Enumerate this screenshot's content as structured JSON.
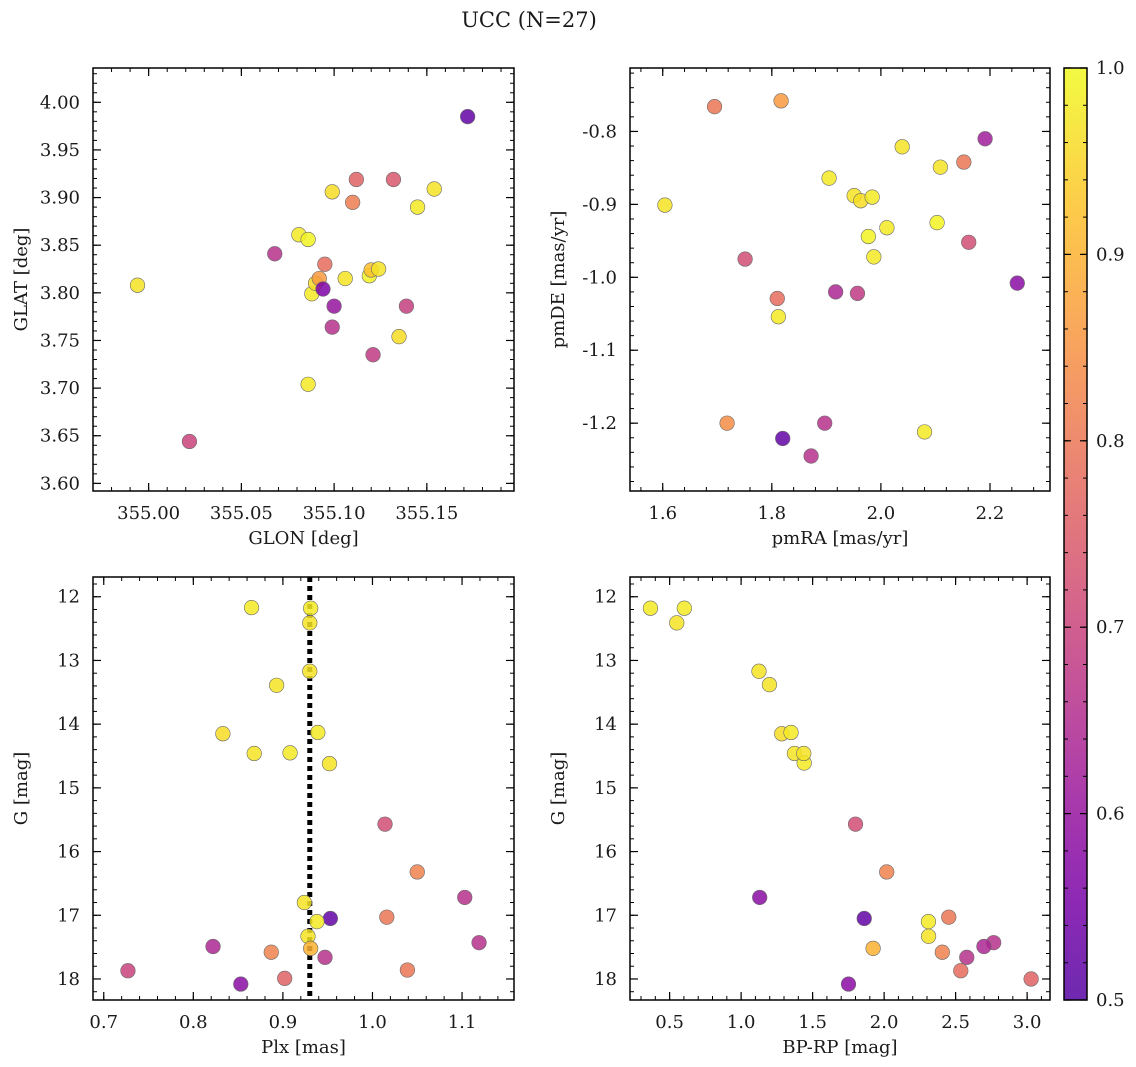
{
  "suptitle": "UCC (N=27)",
  "colorbar": {
    "vmin": 0.5,
    "vmax": 1.0,
    "ticks": [
      0.5,
      0.6,
      0.7,
      0.8,
      0.9,
      1.0
    ]
  },
  "chart_data": [
    {
      "type": "scatter",
      "xlabel": "GLON [deg]",
      "ylabel": "GLAT [deg]",
      "xlim": [
        354.97,
        355.197
      ],
      "ylim": [
        3.592,
        4.036
      ],
      "y_inverted": false,
      "xticks": [
        355.0,
        355.05,
        355.1,
        355.15
      ],
      "xtick_decimals": 2,
      "yticks": [
        3.6,
        3.65,
        3.7,
        3.75,
        3.8,
        3.85,
        3.9,
        3.95,
        4.0
      ],
      "ytick_decimals": 2,
      "x": [
        354.994,
        355.022,
        355.068,
        355.081,
        355.086,
        355.086,
        355.088,
        355.09,
        355.092,
        355.094,
        355.095,
        355.099,
        355.099,
        355.1,
        355.106,
        355.11,
        355.112,
        355.119,
        355.12,
        355.121,
        355.124,
        355.132,
        355.135,
        355.139,
        355.145,
        355.154,
        355.172
      ],
      "y": [
        3.808,
        3.644,
        3.841,
        3.861,
        3.704,
        3.856,
        3.799,
        3.81,
        3.815,
        3.804,
        3.83,
        3.764,
        3.906,
        3.786,
        3.815,
        3.895,
        3.919,
        3.818,
        3.824,
        3.735,
        3.825,
        3.919,
        3.754,
        3.786,
        3.89,
        3.909,
        3.985
      ],
      "prob": [
        0.97,
        0.7,
        0.66,
        0.98,
        0.98,
        0.99,
        0.98,
        0.96,
        0.86,
        0.56,
        0.78,
        0.66,
        0.96,
        0.6,
        0.97,
        0.81,
        0.76,
        0.99,
        0.92,
        0.68,
        0.97,
        0.74,
        0.96,
        0.69,
        0.98,
        0.97,
        0.52
      ]
    },
    {
      "type": "scatter",
      "xlabel": "pmRA [mas/yr]",
      "ylabel": "pmDE [mas/yr]",
      "xlim": [
        1.54,
        2.31
      ],
      "ylim": [
        -1.293,
        -0.713
      ],
      "y_inverted": false,
      "xticks": [
        1.6,
        1.8,
        2.0,
        2.2
      ],
      "xtick_decimals": 1,
      "yticks": [
        -1.2,
        -1.1,
        -1.0,
        -0.9,
        -0.8
      ],
      "ytick_decimals": 1,
      "x": [
        1.604,
        1.695,
        1.718,
        1.751,
        1.81,
        1.812,
        1.817,
        1.82,
        1.872,
        1.897,
        1.905,
        1.917,
        1.951,
        1.957,
        1.963,
        1.977,
        1.984,
        1.987,
        2.011,
        2.039,
        2.08,
        2.103,
        2.109,
        2.152,
        2.161,
        2.191,
        2.25
      ],
      "y": [
        -0.901,
        -0.766,
        -1.2,
        -0.975,
        -1.029,
        -1.054,
        -0.758,
        -1.221,
        -1.245,
        -1.2,
        -0.864,
        -1.02,
        -0.888,
        -1.022,
        -0.895,
        -0.944,
        -0.89,
        -0.972,
        -0.932,
        -0.821,
        -1.212,
        -0.925,
        -0.849,
        -0.842,
        -0.952,
        -0.81,
        -1.008
      ],
      "prob": [
        0.97,
        0.8,
        0.84,
        0.72,
        0.78,
        0.98,
        0.86,
        0.52,
        0.66,
        0.66,
        0.98,
        0.64,
        0.97,
        0.68,
        0.96,
        0.99,
        0.98,
        0.98,
        0.98,
        0.97,
        0.98,
        0.99,
        0.97,
        0.8,
        0.72,
        0.62,
        0.58
      ]
    },
    {
      "type": "scatter",
      "xlabel": "Plx [mas]",
      "ylabel": "G [mag]",
      "xlim": [
        0.688,
        1.158
      ],
      "ylim": [
        18.33,
        11.69
      ],
      "y_inverted": true,
      "xticks": [
        0.7,
        0.8,
        0.9,
        1.0,
        1.1
      ],
      "xtick_decimals": 1,
      "yticks": [
        12,
        13,
        14,
        15,
        16,
        17,
        18
      ],
      "ytick_decimals": 0,
      "vline": {
        "x": 0.93,
        "style": "dotted"
      },
      "x": [
        0.865,
        0.931,
        0.93,
        0.93,
        0.893,
        0.833,
        0.939,
        0.868,
        0.908,
        0.952,
        1.014,
        1.05,
        1.103,
        0.924,
        0.953,
        1.016,
        0.938,
        0.928,
        1.119,
        0.822,
        0.931,
        0.887,
        0.727,
        1.039,
        0.902,
        0.947,
        0.853
      ],
      "y": [
        12.17,
        12.18,
        12.41,
        13.17,
        13.39,
        14.15,
        14.13,
        14.46,
        14.45,
        14.62,
        15.57,
        16.32,
        16.72,
        16.8,
        17.05,
        17.03,
        17.1,
        17.33,
        17.43,
        17.49,
        17.52,
        17.58,
        17.87,
        17.86,
        17.99,
        17.66,
        18.08
      ],
      "prob": [
        0.98,
        0.98,
        0.97,
        0.97,
        0.97,
        0.96,
        0.98,
        0.97,
        0.98,
        0.97,
        0.72,
        0.82,
        0.66,
        0.97,
        0.52,
        0.8,
        0.98,
        0.97,
        0.66,
        0.64,
        0.9,
        0.82,
        0.7,
        0.8,
        0.76,
        0.66,
        0.58
      ]
    },
    {
      "type": "scatter",
      "xlabel": "BP-RP [mag]",
      "ylabel": "G [mag]",
      "xlim": [
        0.223,
        3.16
      ],
      "ylim": [
        18.33,
        11.69
      ],
      "y_inverted": true,
      "xticks": [
        0.5,
        1.0,
        1.5,
        2.0,
        2.5,
        3.0
      ],
      "xtick_decimals": 1,
      "yticks": [
        12,
        13,
        14,
        15,
        16,
        17,
        18
      ],
      "ytick_decimals": 0,
      "x": [
        0.366,
        0.55,
        0.603,
        1.125,
        1.198,
        1.284,
        1.349,
        1.373,
        1.441,
        1.438,
        1.8,
        2.018,
        1.13,
        1.861,
        2.452,
        2.31,
        2.311,
        2.766,
        2.698,
        1.923,
        2.407,
        2.578,
        2.536,
        3.028,
        1.751
      ],
      "y": [
        12.18,
        12.41,
        12.18,
        13.17,
        13.38,
        14.15,
        14.13,
        14.46,
        14.61,
        14.46,
        15.57,
        16.32,
        16.72,
        17.05,
        17.03,
        17.1,
        17.33,
        17.43,
        17.49,
        17.52,
        17.58,
        17.66,
        17.87,
        18.0,
        18.08
      ],
      "prob": [
        0.98,
        0.97,
        0.98,
        0.97,
        0.97,
        0.96,
        0.98,
        0.97,
        0.98,
        0.97,
        0.72,
        0.82,
        0.58,
        0.52,
        0.8,
        0.98,
        0.97,
        0.66,
        0.64,
        0.9,
        0.82,
        0.66,
        0.78,
        0.76,
        0.58
      ]
    }
  ]
}
